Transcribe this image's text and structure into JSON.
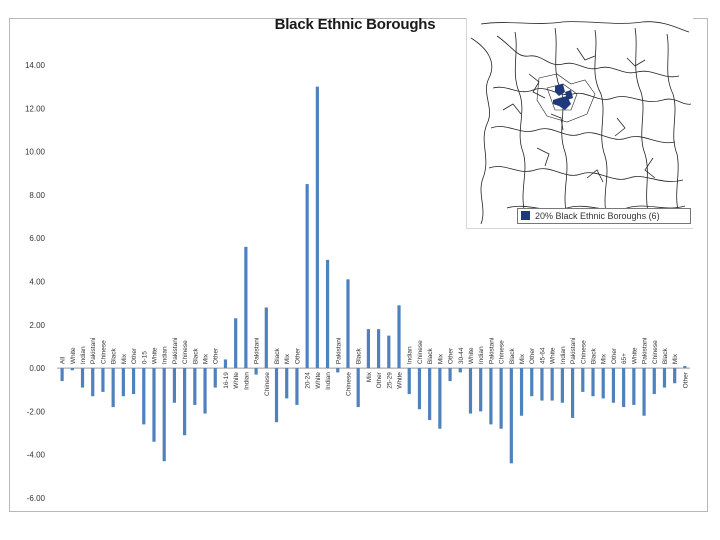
{
  "chart_data": {
    "type": "bar",
    "title": "Black Ethnic Boroughs",
    "xlabel": "",
    "ylabel": "",
    "ylim": [
      -6,
      14
    ],
    "yticks": [
      "-6.00",
      "-4.00",
      "-2.00",
      "0.00",
      "2.00",
      "4.00",
      "6.00",
      "8.00",
      "10.00",
      "12.00",
      "14.00"
    ],
    "grid": false,
    "legend": "none",
    "bar_color": "#4f81bd",
    "categories": [
      "All",
      "White",
      "Indian",
      "Pakistani",
      "Chinese",
      "Black",
      "Mix",
      "Other",
      "0-15",
      "White",
      "Indian",
      "Pakistani",
      "Chinese",
      "Black",
      "Mix",
      "Other",
      "16-19",
      "White",
      "Indian",
      "Pakistani",
      "Chinese",
      "Black",
      "Mix",
      "Other",
      "20-24",
      "White",
      "Indian",
      "Pakistani",
      "Chinese",
      "Black",
      "Mix",
      "Other",
      "25-29",
      "White",
      "Indian",
      "Chinese",
      "Black",
      "Mix",
      "Other",
      "30-44",
      "White",
      "Indian",
      "Pakistani",
      "Chinese",
      "Black",
      "Mix",
      "Other",
      "45-64",
      "White",
      "Indian",
      "Pakistani",
      "Chinese",
      "Black",
      "Mix",
      "Other",
      "65+",
      "White",
      "Pakistani",
      "Chinese",
      "Black",
      "Mix",
      "Other"
    ],
    "values": [
      -0.6,
      -0.1,
      -0.9,
      -1.3,
      -1.1,
      -1.8,
      -1.3,
      -1.2,
      -2.6,
      -3.4,
      -4.3,
      -1.6,
      -3.1,
      -1.7,
      -2.1,
      -0.9,
      0.4,
      2.3,
      5.6,
      -0.3,
      2.8,
      -2.5,
      -1.4,
      -1.7,
      8.5,
      13.0,
      5.0,
      -0.2,
      4.1,
      -1.8,
      1.8,
      1.8,
      1.5,
      2.9,
      -1.2,
      -1.9,
      -2.4,
      -2.8,
      -0.6,
      -0.2,
      -2.1,
      -2.0,
      -2.6,
      -2.8,
      -4.4,
      -2.2,
      -1.3,
      -1.5,
      -1.5,
      -1.6,
      -2.3,
      -1.1,
      -1.3,
      -1.4,
      -1.6,
      -1.8,
      -1.7,
      -2.2,
      -1.2,
      -0.9,
      -0.7,
      0.1
    ]
  },
  "map": {
    "legend_label": "20% Black Ethnic Boroughs (6)",
    "highlight_color": "#1f3a7a"
  }
}
